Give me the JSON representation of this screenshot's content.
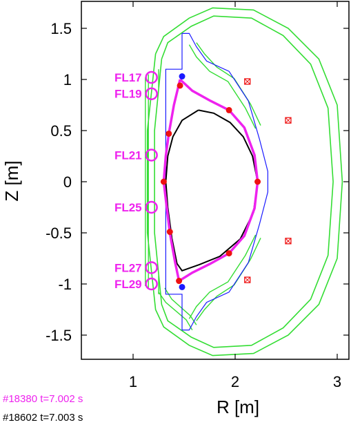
{
  "chart_data": {
    "type": "scatter",
    "title": "",
    "xlabel": "R [m]",
    "ylabel": "Z [m]",
    "xlim": [
      0.5,
      3.2
    ],
    "ylim": [
      -1.75,
      1.75
    ],
    "x_ticks": [
      {
        "value": 1,
        "label": "1"
      },
      {
        "value": 2,
        "label": "2"
      },
      {
        "value": 3,
        "label": "3"
      }
    ],
    "y_ticks": [
      {
        "value": 1.5,
        "label": "1.5"
      },
      {
        "value": 1.0,
        "label": "1"
      },
      {
        "value": 0.5,
        "label": "0.5"
      },
      {
        "value": 0.0,
        "label": "0"
      },
      {
        "value": -0.5,
        "label": "-0.5"
      },
      {
        "value": -1.0,
        "label": "-1"
      },
      {
        "value": -1.5,
        "label": "-1.5"
      }
    ],
    "grid": false,
    "colors": {
      "magenta": "#ee22ee",
      "black": "#000000",
      "blue": "#1a1aff",
      "green": "#33dd33",
      "red": "#ee1111"
    },
    "shots": [
      {
        "label": "#18380 t=7.002 s",
        "color": "#ee22ee"
      },
      {
        "label": "#18602 t=7.003 s",
        "color": "#000000"
      }
    ],
    "flux_loops": [
      {
        "label": "FL17",
        "r": 1.18,
        "z": 1.02
      },
      {
        "label": "FL19",
        "r": 1.18,
        "z": 0.86
      },
      {
        "label": "FL21",
        "r": 1.18,
        "z": 0.26
      },
      {
        "label": "FL25",
        "r": 1.18,
        "z": -0.25
      },
      {
        "label": "FL27",
        "r": 1.18,
        "z": -0.84
      },
      {
        "label": "FL29",
        "r": 1.18,
        "z": -1.0
      }
    ],
    "boundary_18380": [
      [
        1.46,
        1.0
      ],
      [
        1.58,
        0.89
      ],
      [
        1.76,
        0.79
      ],
      [
        1.94,
        0.7
      ],
      [
        2.09,
        0.53
      ],
      [
        2.19,
        0.26
      ],
      [
        2.22,
        0.0
      ],
      [
        2.19,
        -0.26
      ],
      [
        2.09,
        -0.53
      ],
      [
        1.94,
        -0.7
      ],
      [
        1.76,
        -0.8
      ],
      [
        1.58,
        -0.89
      ],
      [
        1.45,
        -0.97
      ],
      [
        1.41,
        -0.78
      ],
      [
        1.36,
        -0.5
      ],
      [
        1.33,
        -0.25
      ],
      [
        1.3,
        0.0
      ],
      [
        1.32,
        0.25
      ],
      [
        1.35,
        0.47
      ],
      [
        1.4,
        0.75
      ],
      [
        1.46,
        1.0
      ]
    ],
    "boundary_18602": [
      [
        1.64,
        0.7
      ],
      [
        1.79,
        0.67
      ],
      [
        1.95,
        0.58
      ],
      [
        2.08,
        0.44
      ],
      [
        2.17,
        0.25
      ],
      [
        2.22,
        0.0
      ],
      [
        2.18,
        -0.3
      ],
      [
        2.05,
        -0.56
      ],
      [
        1.85,
        -0.73
      ],
      [
        1.65,
        -0.81
      ],
      [
        1.48,
        -0.87
      ],
      [
        1.43,
        -0.8
      ],
      [
        1.38,
        -0.55
      ],
      [
        1.34,
        -0.25
      ],
      [
        1.32,
        0.0
      ],
      [
        1.34,
        0.25
      ],
      [
        1.39,
        0.44
      ],
      [
        1.48,
        0.6
      ],
      [
        1.64,
        0.7
      ]
    ],
    "red_points": [
      [
        1.46,
        0.94
      ],
      [
        1.94,
        0.7
      ],
      [
        1.35,
        0.47
      ],
      [
        1.3,
        0.0
      ],
      [
        2.22,
        0.0
      ],
      [
        1.36,
        -0.49
      ],
      [
        1.94,
        -0.7
      ],
      [
        1.45,
        -0.97
      ]
    ],
    "blue_points": [
      [
        1.48,
        1.03
      ],
      [
        1.48,
        -1.03
      ]
    ],
    "coil_markers": [
      [
        2.12,
        0.98
      ],
      [
        2.52,
        0.6
      ],
      [
        2.52,
        -0.58
      ],
      [
        2.12,
        -0.96
      ]
    ],
    "vessel_blue": [
      [
        1.48,
        1.45
      ],
      [
        1.48,
        1.1
      ],
      [
        1.32,
        1.1
      ],
      [
        1.32,
        -1.1
      ],
      [
        1.48,
        -1.1
      ],
      [
        1.48,
        -1.45
      ],
      [
        1.55,
        -1.45
      ],
      [
        1.62,
        -1.32
      ],
      [
        1.72,
        -1.18
      ],
      [
        1.94,
        -1.08
      ],
      [
        2.13,
        -0.79
      ],
      [
        2.24,
        -0.41
      ],
      [
        2.32,
        -0.1
      ],
      [
        2.32,
        0.1
      ],
      [
        2.24,
        0.41
      ],
      [
        2.13,
        0.79
      ],
      [
        1.94,
        1.08
      ],
      [
        1.72,
        1.18
      ],
      [
        1.62,
        1.32
      ],
      [
        1.55,
        1.45
      ],
      [
        1.48,
        1.45
      ]
    ],
    "green_outer": [
      [
        1.22,
        1.25
      ],
      [
        1.3,
        1.42
      ],
      [
        1.55,
        1.6
      ],
      [
        1.78,
        1.7
      ],
      [
        2.18,
        1.68
      ],
      [
        2.52,
        1.5
      ],
      [
        2.82,
        1.2
      ],
      [
        3.0,
        0.75
      ],
      [
        3.05,
        0.0
      ],
      [
        3.0,
        -0.75
      ],
      [
        2.82,
        -1.2
      ],
      [
        2.52,
        -1.5
      ],
      [
        2.18,
        -1.68
      ],
      [
        1.78,
        -1.7
      ],
      [
        1.55,
        -1.6
      ],
      [
        1.3,
        -1.42
      ],
      [
        1.22,
        -1.25
      ],
      [
        1.14,
        -0.5
      ],
      [
        1.14,
        0.5
      ],
      [
        1.22,
        1.25
      ]
    ],
    "green_inner": [
      [
        1.28,
        1.2
      ],
      [
        1.34,
        1.36
      ],
      [
        1.57,
        1.52
      ],
      [
        1.79,
        1.62
      ],
      [
        2.16,
        1.6
      ],
      [
        2.47,
        1.43
      ],
      [
        2.74,
        1.15
      ],
      [
        2.91,
        0.72
      ],
      [
        2.96,
        0.0
      ],
      [
        2.91,
        -0.72
      ],
      [
        2.74,
        -1.15
      ],
      [
        2.47,
        -1.43
      ],
      [
        2.16,
        -1.6
      ],
      [
        1.79,
        -1.62
      ],
      [
        1.57,
        -1.52
      ],
      [
        1.34,
        -1.36
      ],
      [
        1.28,
        -1.2
      ],
      [
        1.21,
        -0.5
      ],
      [
        1.21,
        0.5
      ],
      [
        1.28,
        1.2
      ]
    ],
    "green_rails": [
      [
        [
          1.12,
          1.02
        ],
        [
          1.12,
          -1.02
        ]
      ],
      [
        [
          1.15,
          1.05
        ],
        [
          1.15,
          -1.05
        ]
      ],
      [
        [
          1.25,
          1.1
        ],
        [
          1.25,
          0.92
        ]
      ],
      [
        [
          1.25,
          -0.92
        ],
        [
          1.25,
          -1.1
        ]
      ]
    ],
    "green_plates": [
      [
        [
          1.55,
          1.34
        ],
        [
          1.62,
          1.22
        ],
        [
          1.75,
          1.08
        ],
        [
          1.93,
          0.98
        ],
        [
          2.1,
          0.72
        ],
        [
          2.2,
          0.52
        ]
      ],
      [
        [
          1.62,
          1.36
        ],
        [
          1.7,
          1.25
        ],
        [
          1.82,
          1.12
        ],
        [
          1.99,
          1.01
        ],
        [
          2.15,
          0.76
        ],
        [
          2.25,
          0.55
        ]
      ],
      [
        [
          1.55,
          -1.34
        ],
        [
          1.62,
          -1.22
        ],
        [
          1.75,
          -1.08
        ],
        [
          1.93,
          -0.98
        ],
        [
          2.1,
          -0.72
        ],
        [
          2.2,
          -0.52
        ]
      ],
      [
        [
          1.62,
          -1.36
        ],
        [
          1.7,
          -1.25
        ],
        [
          1.82,
          -1.12
        ],
        [
          1.99,
          -1.01
        ],
        [
          2.15,
          -0.76
        ],
        [
          2.25,
          -0.55
        ]
      ],
      [
        [
          1.25,
          -1.08
        ],
        [
          1.32,
          -1.18
        ],
        [
          1.52,
          -1.35
        ],
        [
          1.58,
          -1.45
        ]
      ],
      [
        [
          1.31,
          -1.04
        ],
        [
          1.38,
          -1.15
        ],
        [
          1.56,
          -1.31
        ],
        [
          1.62,
          -1.4
        ]
      ]
    ]
  }
}
